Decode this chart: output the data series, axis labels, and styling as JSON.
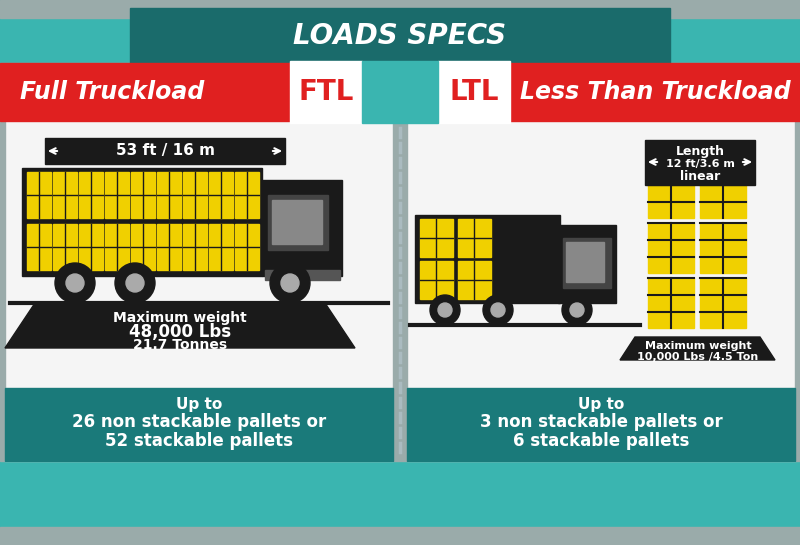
{
  "title": "LOADS SPECS",
  "bg_outer": "#3ab5b0",
  "bg_title_box": "#1a6b6b",
  "red_banner": "#e02020",
  "yellow": "#f0d000",
  "dark_gray": "#1a1a1a",
  "white": "#ffffff",
  "gray_sep": "#9aabaa",
  "white_panel": "#f5f5f5",
  "teal_bottom": "#1a7a7a",
  "dashed_color": "#aabbc0",
  "ftl_label": "FTL",
  "ltl_label": "LTL",
  "left_title": "Full Truckload",
  "right_title": "Less Than Truckload",
  "ftl_length": "53 ft / 16 m",
  "ftl_weight_line1": "Maximum weight",
  "ftl_weight_line2": "48,000 Lbs",
  "ftl_weight_line3": "21.7 Tonnes",
  "ltl_length_label": "Length",
  "ltl_length": "12 ft/3.6 m",
  "ltl_length_sub": "linear",
  "ltl_weight_line1": "Maximum weight",
  "ltl_weight_line2": "10,000 Lbs /4.5 Ton",
  "ftl_pallets_line1": "Up to",
  "ftl_pallets_line2": "26 non stackable pallets or",
  "ftl_pallets_line3": "52 stackable pallets",
  "ltl_pallets_line1": "Up to",
  "ltl_pallets_line2": "3 non stackable pallets or",
  "ltl_pallets_line3": "6 stackable pallets"
}
